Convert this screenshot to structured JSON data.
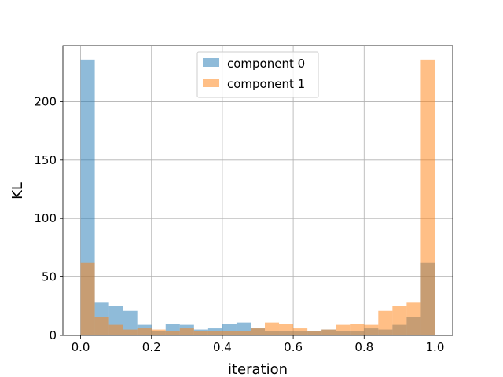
{
  "chart_data": {
    "type": "bar",
    "xlabel": "iteration",
    "ylabel": "KL",
    "xlim": [
      -0.05,
      1.05
    ],
    "ylim": [
      0,
      248
    ],
    "xticks": [
      0.0,
      0.2,
      0.4,
      0.6,
      0.8,
      1.0
    ],
    "xtick_labels": [
      "0.0",
      "0.2",
      "0.4",
      "0.6",
      "0.8",
      "1.0"
    ],
    "yticks": [
      0,
      50,
      100,
      150,
      200
    ],
    "ytick_labels": [
      "0",
      "50",
      "100",
      "150",
      "200"
    ],
    "grid": true,
    "legend_position": "top-center",
    "bin_edges": [
      0.0,
      0.04,
      0.08,
      0.12,
      0.16,
      0.2,
      0.24,
      0.28,
      0.32,
      0.36,
      0.4,
      0.44,
      0.48,
      0.52,
      0.56,
      0.6,
      0.64,
      0.68,
      0.72,
      0.76,
      0.8,
      0.84,
      0.88,
      0.92,
      0.96,
      1.0
    ],
    "series": [
      {
        "name": "component 0",
        "color": "#1f77b4",
        "values": [
          236,
          28,
          25,
          21,
          9,
          4,
          10,
          9,
          5,
          6,
          10,
          11,
          6,
          4,
          4,
          4,
          4,
          5,
          4,
          4,
          6,
          5,
          9,
          16,
          62
        ]
      },
      {
        "name": "component 1",
        "color": "#ff7f0e",
        "values": [
          62,
          16,
          9,
          5,
          6,
          5,
          4,
          6,
          4,
          4,
          4,
          4,
          6,
          11,
          10,
          6,
          4,
          5,
          9,
          10,
          9,
          21,
          25,
          28,
          236
        ]
      }
    ]
  }
}
